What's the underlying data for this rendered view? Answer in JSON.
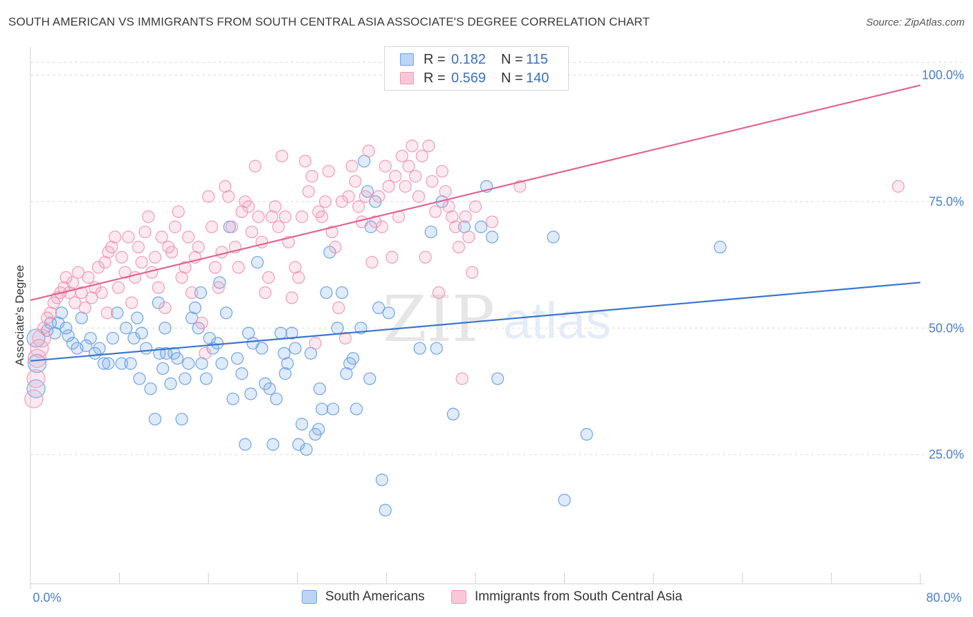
{
  "title": "SOUTH AMERICAN VS IMMIGRANTS FROM SOUTH CENTRAL ASIA ASSOCIATE'S DEGREE CORRELATION CHART",
  "source": "Source: ZipAtlas.com",
  "watermark": {
    "zip": "ZIP",
    "atlas": "atlas"
  },
  "colors": {
    "blue": "#6fa3e6",
    "blue_line": "#3a75cc",
    "pink": "#f29ab8",
    "pink_line": "#e0648f"
  },
  "legend_top": [
    {
      "r_label": "R =",
      "r_value": "0.182",
      "n_label": "N =",
      "n_value": "115"
    },
    {
      "r_label": "R =",
      "r_value": "0.569",
      "n_label": "N =",
      "n_value": "140"
    }
  ],
  "legend_bottom": [
    "South Americans",
    "Immigrants from South Central Asia"
  ],
  "chart_data": {
    "type": "scatter",
    "title": "SOUTH AMERICAN VS IMMIGRANTS FROM SOUTH CENTRAL ASIA ASSOCIATE'S DEGREE CORRELATION CHART",
    "xlabel": "",
    "ylabel": "Associate's Degree",
    "xlim": [
      0,
      80
    ],
    "ylim": [
      0,
      105
    ],
    "x_tick_labels": [
      "0.0%",
      "80.0%"
    ],
    "y_ticks": [
      25,
      50,
      75,
      100
    ],
    "y_tick_labels": [
      "25.0%",
      "50.0%",
      "75.0%",
      "100.0%"
    ],
    "grid": "horizontal dashed",
    "legend": "top-center and bottom",
    "series": [
      {
        "name": "South Americans",
        "r": 0.182,
        "n": 115,
        "trend": {
          "x": [
            0,
            80
          ],
          "y": [
            43.5,
            59.0
          ]
        },
        "points": [
          [
            0.5,
            48
          ],
          [
            0.6,
            43
          ],
          [
            0.5,
            38
          ],
          [
            1.5,
            49.5
          ],
          [
            1.8,
            51
          ],
          [
            2.2,
            49
          ],
          [
            2.5,
            51
          ],
          [
            2.8,
            53
          ],
          [
            3.2,
            50
          ],
          [
            3.4,
            48.5
          ],
          [
            3.8,
            47
          ],
          [
            4.2,
            46
          ],
          [
            4.6,
            52
          ],
          [
            5.0,
            46.5
          ],
          [
            5.4,
            48
          ],
          [
            5.8,
            45
          ],
          [
            6.2,
            46
          ],
          [
            6.6,
            43
          ],
          [
            7.0,
            43
          ],
          [
            7.4,
            48
          ],
          [
            7.8,
            53
          ],
          [
            8.2,
            43
          ],
          [
            8.6,
            50
          ],
          [
            9.0,
            43
          ],
          [
            9.3,
            48
          ],
          [
            9.6,
            52
          ],
          [
            10.0,
            49
          ],
          [
            10.4,
            46
          ],
          [
            10.8,
            38
          ],
          [
            11.2,
            32
          ],
          [
            11.6,
            45
          ],
          [
            11.9,
            42
          ],
          [
            12.2,
            45
          ],
          [
            12.6,
            39
          ],
          [
            12.9,
            45
          ],
          [
            13.2,
            44
          ],
          [
            13.6,
            32
          ],
          [
            13.9,
            40
          ],
          [
            14.2,
            43
          ],
          [
            14.5,
            52
          ],
          [
            14.8,
            54
          ],
          [
            15.1,
            50
          ],
          [
            15.4,
            43
          ],
          [
            15.8,
            40
          ],
          [
            16.1,
            48
          ],
          [
            16.4,
            46
          ],
          [
            16.8,
            47
          ],
          [
            17.2,
            43
          ],
          [
            17.6,
            53
          ],
          [
            17.9,
            70
          ],
          [
            18.2,
            36
          ],
          [
            18.6,
            44
          ],
          [
            19.0,
            41
          ],
          [
            19.3,
            27
          ],
          [
            19.6,
            49
          ],
          [
            20.0,
            47
          ],
          [
            20.4,
            63
          ],
          [
            20.8,
            46
          ],
          [
            21.1,
            39
          ],
          [
            21.5,
            38
          ],
          [
            21.8,
            27
          ],
          [
            22.1,
            36
          ],
          [
            22.5,
            49
          ],
          [
            22.8,
            45
          ],
          [
            23.1,
            43
          ],
          [
            23.5,
            49
          ],
          [
            23.8,
            46
          ],
          [
            24.1,
            27
          ],
          [
            24.4,
            31
          ],
          [
            24.8,
            26
          ],
          [
            25.2,
            45
          ],
          [
            25.6,
            29
          ],
          [
            25.9,
            30
          ],
          [
            26.2,
            34
          ],
          [
            26.6,
            57
          ],
          [
            26.9,
            65
          ],
          [
            27.2,
            34
          ],
          [
            27.6,
            50
          ],
          [
            28.0,
            57
          ],
          [
            28.4,
            41
          ],
          [
            28.7,
            43
          ],
          [
            29.0,
            44
          ],
          [
            29.3,
            34
          ],
          [
            29.7,
            50
          ],
          [
            30.0,
            83
          ],
          [
            30.3,
            77
          ],
          [
            30.6,
            70
          ],
          [
            31.0,
            75
          ],
          [
            31.3,
            54
          ],
          [
            31.6,
            20
          ],
          [
            31.9,
            14
          ],
          [
            32.2,
            53
          ],
          [
            35.0,
            46
          ],
          [
            36.0,
            69
          ],
          [
            37.0,
            75
          ],
          [
            38.0,
            33
          ],
          [
            39.0,
            70
          ],
          [
            40.5,
            70
          ],
          [
            41.0,
            78
          ],
          [
            41.5,
            68
          ],
          [
            42.0,
            40
          ],
          [
            47.0,
            68
          ],
          [
            48.0,
            16
          ],
          [
            50.0,
            29
          ],
          [
            62.0,
            66
          ],
          [
            17.0,
            59
          ],
          [
            11.5,
            55
          ],
          [
            30.5,
            40
          ],
          [
            36.5,
            46
          ],
          [
            22.9,
            41
          ],
          [
            9.8,
            40
          ],
          [
            15.3,
            57
          ],
          [
            26.0,
            38
          ],
          [
            12.1,
            50
          ],
          [
            19.8,
            37
          ]
        ]
      },
      {
        "name": "Immigrants from South Central Asia",
        "r": 0.569,
        "n": 140,
        "trend": {
          "x": [
            0,
            80
          ],
          "y": [
            55.5,
            98.0
          ]
        },
        "points": [
          [
            0.3,
            36
          ],
          [
            0.5,
            40
          ],
          [
            0.6,
            44
          ],
          [
            0.8,
            46
          ],
          [
            1.0,
            48
          ],
          [
            1.2,
            50
          ],
          [
            1.5,
            52
          ],
          [
            1.8,
            53
          ],
          [
            2.1,
            55
          ],
          [
            2.4,
            56
          ],
          [
            2.7,
            57
          ],
          [
            3.0,
            58
          ],
          [
            3.2,
            60
          ],
          [
            3.5,
            57
          ],
          [
            3.8,
            59
          ],
          [
            4.0,
            55
          ],
          [
            4.3,
            61
          ],
          [
            4.6,
            57
          ],
          [
            4.9,
            54
          ],
          [
            5.2,
            60
          ],
          [
            5.5,
            56
          ],
          [
            5.8,
            58
          ],
          [
            6.1,
            62
          ],
          [
            6.4,
            57
          ],
          [
            6.7,
            63
          ],
          [
            7.0,
            65
          ],
          [
            7.3,
            66
          ],
          [
            7.6,
            68
          ],
          [
            7.9,
            58
          ],
          [
            8.2,
            64
          ],
          [
            8.5,
            61
          ],
          [
            8.8,
            68
          ],
          [
            9.1,
            55
          ],
          [
            9.4,
            60
          ],
          [
            9.7,
            66
          ],
          [
            10.0,
            63
          ],
          [
            10.3,
            69
          ],
          [
            10.6,
            72
          ],
          [
            10.9,
            61
          ],
          [
            11.2,
            64
          ],
          [
            11.5,
            58
          ],
          [
            11.8,
            68
          ],
          [
            12.1,
            54
          ],
          [
            12.4,
            66
          ],
          [
            12.7,
            65
          ],
          [
            13.0,
            70
          ],
          [
            13.3,
            73
          ],
          [
            13.6,
            60
          ],
          [
            13.9,
            62
          ],
          [
            14.2,
            68
          ],
          [
            14.5,
            57
          ],
          [
            14.8,
            64
          ],
          [
            15.1,
            66
          ],
          [
            15.4,
            51
          ],
          [
            15.7,
            45
          ],
          [
            16.0,
            76
          ],
          [
            16.3,
            70
          ],
          [
            16.6,
            62
          ],
          [
            16.9,
            58
          ],
          [
            17.2,
            65
          ],
          [
            17.5,
            78
          ],
          [
            17.8,
            76
          ],
          [
            18.1,
            70
          ],
          [
            18.4,
            66
          ],
          [
            18.7,
            62
          ],
          [
            19.0,
            73
          ],
          [
            19.3,
            75
          ],
          [
            19.6,
            74
          ],
          [
            19.9,
            69
          ],
          [
            20.2,
            82
          ],
          [
            20.5,
            72
          ],
          [
            20.8,
            67
          ],
          [
            21.1,
            57
          ],
          [
            21.4,
            60
          ],
          [
            21.7,
            72
          ],
          [
            22.0,
            74
          ],
          [
            22.3,
            70
          ],
          [
            22.6,
            84
          ],
          [
            22.9,
            72
          ],
          [
            23.2,
            67
          ],
          [
            23.5,
            56
          ],
          [
            23.8,
            62
          ],
          [
            24.1,
            60
          ],
          [
            24.4,
            72
          ],
          [
            24.7,
            83
          ],
          [
            25.0,
            77
          ],
          [
            25.3,
            80
          ],
          [
            25.6,
            47
          ],
          [
            25.9,
            73
          ],
          [
            26.2,
            72
          ],
          [
            26.5,
            75
          ],
          [
            26.8,
            81
          ],
          [
            27.1,
            69
          ],
          [
            27.4,
            66
          ],
          [
            27.7,
            54
          ],
          [
            28.0,
            75
          ],
          [
            28.3,
            48
          ],
          [
            28.6,
            76
          ],
          [
            28.9,
            82
          ],
          [
            29.2,
            79
          ],
          [
            29.5,
            74
          ],
          [
            29.8,
            71
          ],
          [
            30.1,
            76
          ],
          [
            30.4,
            85
          ],
          [
            30.7,
            63
          ],
          [
            31.0,
            71
          ],
          [
            31.3,
            76
          ],
          [
            31.6,
            70
          ],
          [
            31.9,
            82
          ],
          [
            32.2,
            78
          ],
          [
            32.5,
            64
          ],
          [
            32.8,
            80
          ],
          [
            33.1,
            72
          ],
          [
            33.4,
            84
          ],
          [
            33.7,
            78
          ],
          [
            34.0,
            82
          ],
          [
            34.3,
            86
          ],
          [
            34.6,
            80
          ],
          [
            34.9,
            76
          ],
          [
            35.2,
            84
          ],
          [
            35.5,
            64
          ],
          [
            35.8,
            86
          ],
          [
            36.1,
            79
          ],
          [
            36.4,
            73
          ],
          [
            36.7,
            57
          ],
          [
            37.0,
            81
          ],
          [
            37.3,
            77
          ],
          [
            37.6,
            74
          ],
          [
            37.9,
            72
          ],
          [
            38.2,
            70
          ],
          [
            38.5,
            66
          ],
          [
            38.8,
            40
          ],
          [
            39.1,
            72
          ],
          [
            39.4,
            68
          ],
          [
            39.7,
            61
          ],
          [
            40.0,
            74
          ],
          [
            41.5,
            71
          ],
          [
            44.0,
            78
          ],
          [
            78.0,
            78
          ],
          [
            6.9,
            53
          ]
        ]
      }
    ]
  }
}
